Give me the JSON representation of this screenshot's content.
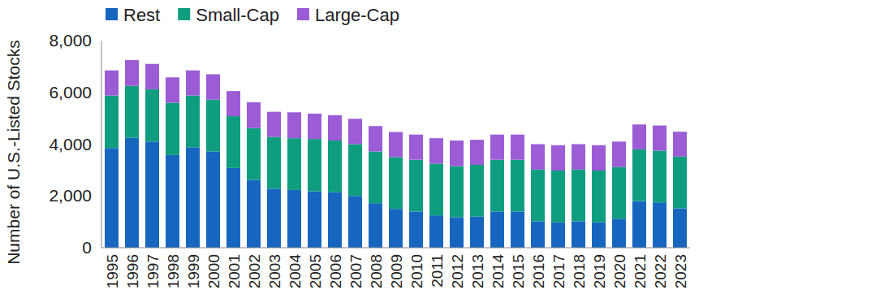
{
  "chart_data": {
    "type": "bar",
    "stacked": true,
    "grid": false,
    "legend": "top-left",
    "y_label": "Number of U.S.-Listed Stocks",
    "categories": [
      "1995",
      "1996",
      "1997",
      "1998",
      "1999",
      "2000",
      "2001",
      "2002",
      "2003",
      "2004",
      "2005",
      "2006",
      "2007",
      "2008",
      "2009",
      "2010",
      "2011",
      "2012",
      "2013",
      "2014",
      "2015",
      "2016",
      "2017",
      "2018",
      "2019",
      "2020",
      "2021",
      "2022",
      "2023"
    ],
    "ylim": [
      0,
      8000
    ],
    "yticks": [
      0,
      {
        "value": 2000,
        "label": "2,000"
      },
      {
        "value": 4000,
        "label": "4,000"
      },
      {
        "value": 6000,
        "label": "6,000"
      },
      {
        "value": 8000,
        "label": "8,000"
      }
    ],
    "series": [
      {
        "name": "Rest",
        "color": "#1666c0",
        "values": [
          3850,
          4250,
          4100,
          3580,
          3880,
          3720,
          3080,
          2620,
          2280,
          2230,
          2180,
          2140,
          2000,
          1720,
          1500,
          1400,
          1250,
          1180,
          1200,
          1400,
          1400,
          1020,
          980,
          1020,
          980,
          1120,
          1800,
          1750,
          1520
        ]
      },
      {
        "name": "Small-Cap",
        "color": "#0e9e7f",
        "values": [
          2030,
          2000,
          2020,
          2020,
          2000,
          2000,
          2000,
          2000,
          2000,
          2000,
          2020,
          2000,
          2000,
          2000,
          2000,
          2000,
          2000,
          1970,
          2000,
          2000,
          2000,
          2000,
          2000,
          2000,
          2000,
          2000,
          2000,
          2000,
          2000
        ]
      },
      {
        "name": "Large-Cap",
        "color": "#9b5cd6",
        "values": [
          970,
          1000,
          980,
          980,
          970,
          980,
          970,
          1000,
          970,
          1000,
          980,
          980,
          980,
          980,
          970,
          970,
          980,
          990,
          970,
          970,
          970,
          980,
          980,
          980,
          980,
          980,
          960,
          970,
          960
        ]
      }
    ]
  }
}
